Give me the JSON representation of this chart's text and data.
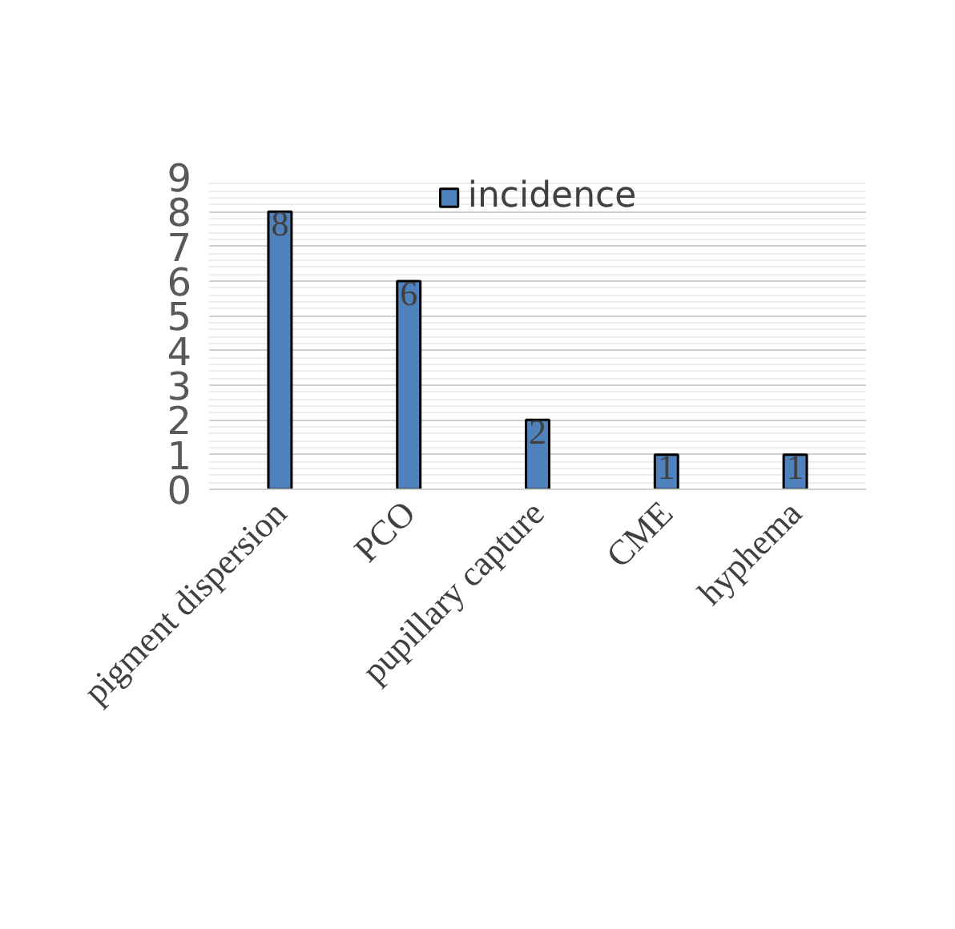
{
  "chart_data": {
    "type": "bar",
    "categories": [
      "pigment dispersion",
      "PCO",
      "pupillary capture",
      "CME",
      "hyphema"
    ],
    "series": [
      {
        "name": "incidence",
        "color": "#4f81bd",
        "values": [
          8,
          6,
          2,
          1,
          1
        ]
      }
    ],
    "ylim": [
      0,
      9
    ],
    "yticks": [
      0,
      1,
      2,
      3,
      4,
      5,
      6,
      7,
      8,
      9
    ],
    "grid": "y",
    "legend": "top",
    "data_labels": true
  }
}
